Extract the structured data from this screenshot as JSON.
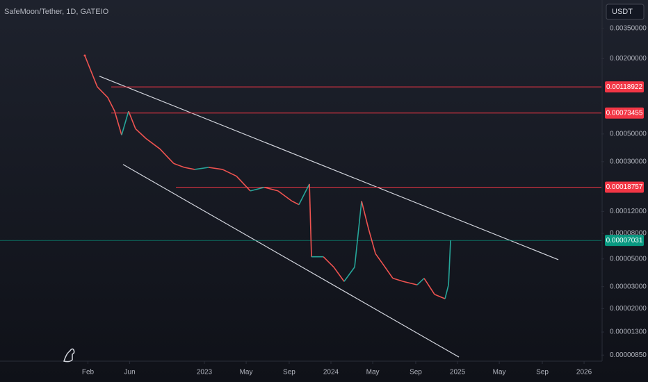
{
  "chart_data": {
    "type": "line",
    "title": "SafeMoon/Tether, 1D, GATEIO",
    "currency": "USDT",
    "log_scale": true,
    "grid": false,
    "up_color": "#26a69a",
    "down_color": "#ef5350",
    "x": [
      2022.055,
      2022.099,
      2022.154,
      2022.236,
      2022.291,
      2022.346,
      2022.401,
      2022.456,
      2022.538,
      2022.648,
      2022.758,
      2022.841,
      2022.923,
      2023.033,
      2023.143,
      2023.253,
      2023.363,
      2023.473,
      2023.582,
      2023.692,
      2023.747,
      2023.83,
      2023.846,
      2023.94,
      2024.022,
      2024.104,
      2024.187,
      2024.242,
      2024.297,
      2024.352,
      2024.407,
      2024.489,
      2024.571,
      2024.681,
      2024.736,
      2024.819,
      2024.901,
      2024.929,
      2024.945
    ],
    "values": [
      0.00212,
      0.00164,
      0.00119,
      0.00098,
      0.00076,
      0.00049,
      0.00076,
      0.00055,
      0.00046,
      0.00038,
      0.00029,
      0.00027,
      0.00026,
      0.00027,
      0.00026,
      0.00023,
      0.000175,
      0.000187,
      0.000175,
      0.000145,
      0.000136,
      0.000199,
      5.2e-05,
      5.2e-05,
      4.3e-05,
      3.3e-05,
      4.3e-05,
      0.000145,
      8.7e-05,
      5.5e-05,
      4.6e-05,
      3.5e-05,
      3.3e-05,
      3.1e-05,
      3.5e-05,
      2.6e-05,
      2.4e-05,
      3.1e-05,
      7.031e-05
    ],
    "xlim": [
      2021.385,
      2026.137
    ],
    "xticks": [
      {
        "value": 2022.08,
        "label": "Feb"
      },
      {
        "value": 2022.41,
        "label": "Jun"
      },
      {
        "value": 2023,
        "label": "2023"
      },
      {
        "value": 2023.33,
        "label": "May"
      },
      {
        "value": 2023.67,
        "label": "Sep"
      },
      {
        "value": 2024,
        "label": "2024"
      },
      {
        "value": 2024.33,
        "label": "May"
      },
      {
        "value": 2024.67,
        "label": "Sep"
      },
      {
        "value": 2025,
        "label": "2025"
      },
      {
        "value": 2025.33,
        "label": "May"
      },
      {
        "value": 2025.67,
        "label": "Sep"
      },
      {
        "value": 2026,
        "label": "2026"
      }
    ],
    "ylim": [
      7.6e-06,
      0.0059
    ],
    "yticks": [
      {
        "value": 0.0035,
        "label": "0.00350000"
      },
      {
        "value": 0.002,
        "label": "0.00200000"
      },
      {
        "value": 0.0005,
        "label": "0.00050000"
      },
      {
        "value": 0.0003,
        "label": "0.00030000"
      },
      {
        "value": 0.00012,
        "label": "0.00012000"
      },
      {
        "value": 8e-05,
        "label": "0.00008000"
      },
      {
        "value": 5e-05,
        "label": "0.00005000"
      },
      {
        "value": 3e-05,
        "label": "0.00003000"
      },
      {
        "value": 2e-05,
        "label": "0.00002000"
      },
      {
        "value": 1.3e-05,
        "label": "0.00001300"
      },
      {
        "value": 8.5e-06,
        "label": "0.00000850"
      }
    ],
    "levels": [
      {
        "value": 0.00118922,
        "x_start": 2022.264,
        "color": "#f23645"
      },
      {
        "value": 0.00073455,
        "x_start": 2022.264,
        "color": "#f23645"
      },
      {
        "value": 0.00018757,
        "x_start": 2022.775,
        "color": "#f23645"
      }
    ],
    "last_price": {
      "value": 7.031e-05,
      "color": "#089981"
    },
    "trendlines": [
      {
        "x": [
          2022.17,
          2025.797
        ],
        "y": [
          0.00145,
          4.93e-05
        ],
        "color": "#d1d4dc"
      },
      {
        "x": [
          2022.357,
          2025.011
        ],
        "y": [
          0.000285,
          8.2e-06
        ],
        "color": "#d1d4dc"
      }
    ]
  }
}
